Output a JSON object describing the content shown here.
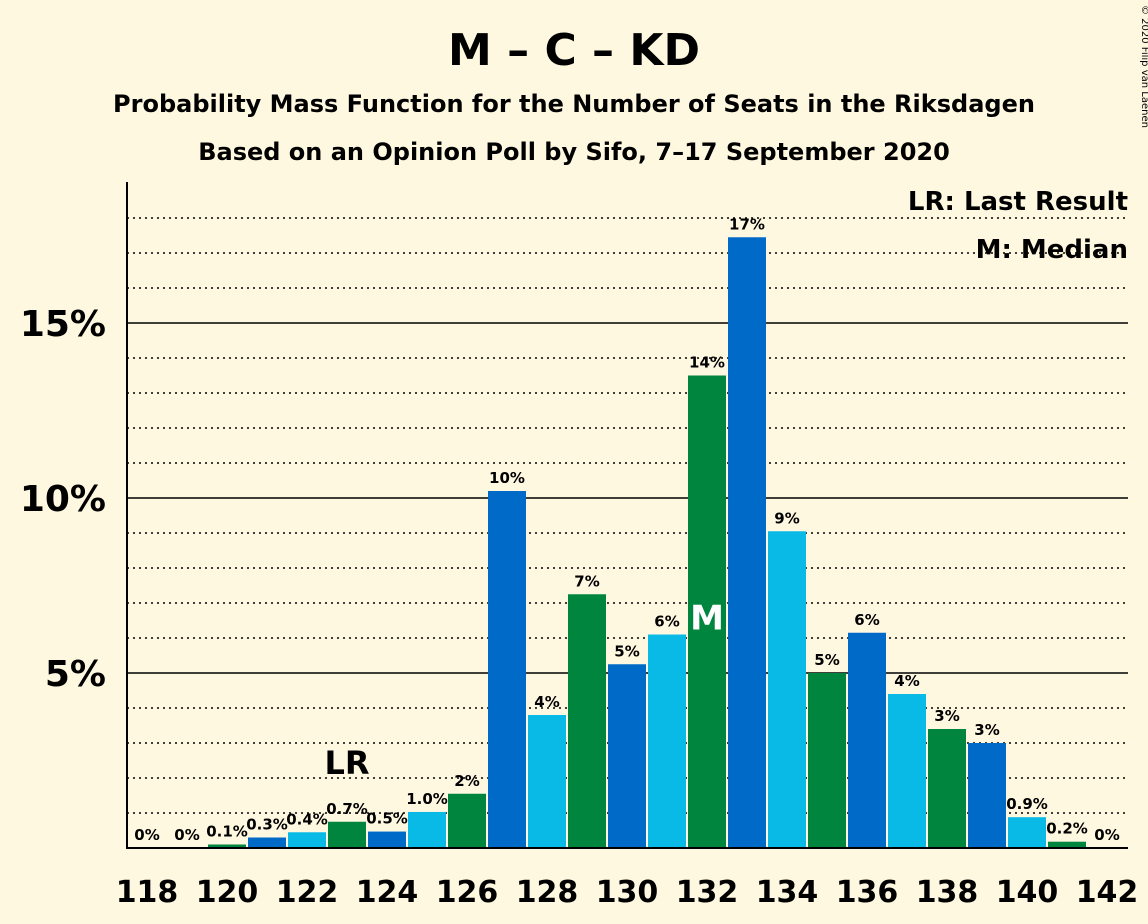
{
  "chart_data": {
    "type": "bar",
    "title": "M – C – KD",
    "subtitle_1": "Probability Mass Function for the Number of Seats in the Riksdagen",
    "subtitle_2": "Based on an Opinion Poll by Sifo, 7–17 September 2020",
    "copyright": "© 2020 Filip van Laenen",
    "legend": {
      "last_result": "LR: Last Result",
      "median": "M: Median",
      "placement": "top-right"
    },
    "ylim": [
      0,
      19
    ],
    "y_ticks": [
      {
        "value": 5,
        "label": "5%"
      },
      {
        "value": 10,
        "label": "10%"
      },
      {
        "value": 15,
        "label": "15%"
      }
    ],
    "x_ticks": [
      118,
      120,
      122,
      124,
      126,
      128,
      130,
      132,
      134,
      136,
      138,
      140,
      142
    ],
    "categories": [
      118,
      119,
      120,
      121,
      122,
      123,
      124,
      125,
      126,
      127,
      128,
      129,
      130,
      131,
      132,
      133,
      134,
      135,
      136,
      137,
      138,
      139,
      140,
      141,
      142
    ],
    "values": [
      0,
      0,
      0.1,
      0.3,
      0.45,
      0.75,
      0.47,
      1.03,
      1.55,
      10.2,
      3.8,
      7.25,
      5.25,
      6.1,
      13.5,
      17.45,
      9.05,
      5.0,
      6.15,
      4.4,
      3.4,
      3.0,
      0.88,
      0.18,
      0
    ],
    "labels": [
      "0%",
      "0%",
      "0.1%",
      "0.3%",
      "0.4%",
      "0.7%",
      "0.5%",
      "1.0%",
      "2%",
      "10%",
      "4%",
      "7%",
      "5%",
      "6%",
      "14%",
      "17%",
      "9%",
      "5%",
      "6%",
      "4%",
      "3%",
      "3%",
      "0.9%",
      "0.2%",
      "0%"
    ],
    "last_result": {
      "seat": 123,
      "label": "LR"
    },
    "median": {
      "seat": 132,
      "label": "M"
    },
    "grid": true,
    "colors": [
      "#0ABAE6",
      "#00853E",
      "#006AC8"
    ],
    "background": "#FFF8E1"
  }
}
